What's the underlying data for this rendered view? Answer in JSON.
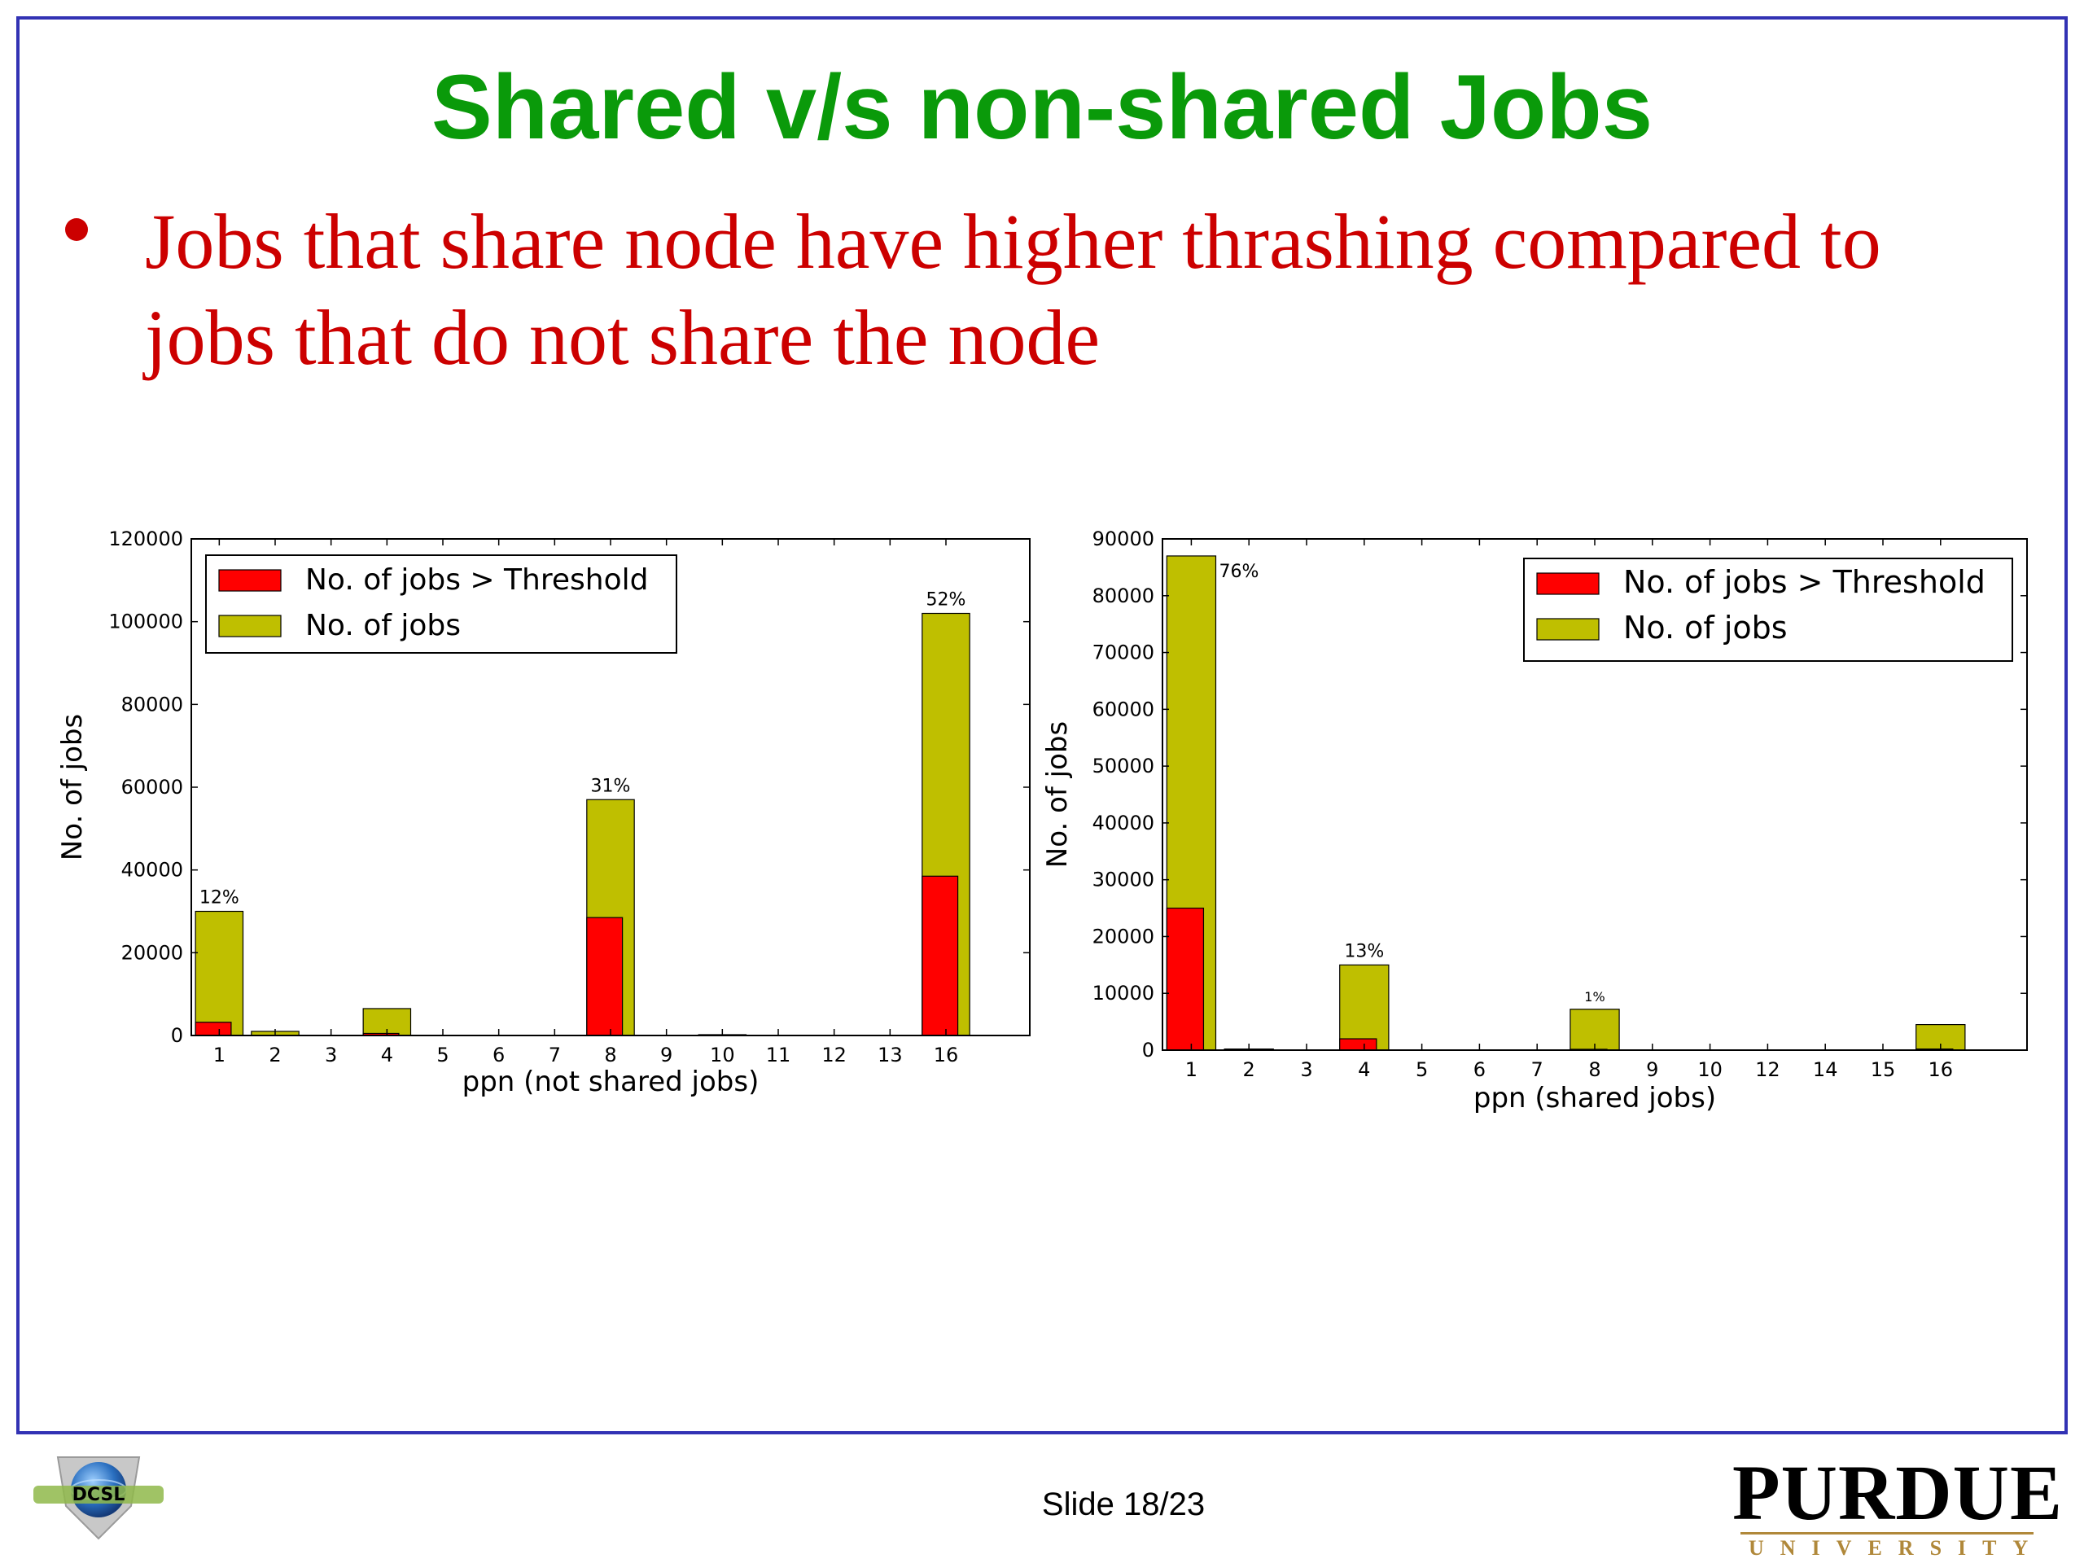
{
  "slide": {
    "title": "Shared v/s non-shared Jobs",
    "bullet": "Jobs that share node have higher thrashing compared to jobs that do not share the node",
    "footer": "Slide 18/23",
    "logos": {
      "left": "dcsl-logo",
      "right": {
        "word": "PURDUE",
        "sub": "UNIVERSITY"
      }
    },
    "colors": {
      "title": "#0a9a0a",
      "bullet": "#cc0000",
      "frame": "#3232b4"
    }
  },
  "chart_data": [
    {
      "type": "bar",
      "categories": [
        "1",
        "2",
        "3",
        "4",
        "5",
        "6",
        "7",
        "8",
        "9",
        "10",
        "11",
        "12",
        "13",
        "16"
      ],
      "series": [
        {
          "name": "No. of jobs",
          "color": "#bfbf00",
          "values": [
            30000,
            1000,
            0,
            6500,
            0,
            0,
            0,
            57000,
            0,
            200,
            0,
            0,
            0,
            102000
          ]
        },
        {
          "name": "No. of jobs > Threshold",
          "color": "#ff0000",
          "values": [
            3200,
            0,
            0,
            500,
            0,
            0,
            0,
            28500,
            0,
            0,
            0,
            0,
            0,
            38500
          ]
        }
      ],
      "annotations": [
        {
          "category": "1",
          "text": "12%"
        },
        {
          "category": "8",
          "text": "31%"
        },
        {
          "category": "16",
          "text": "52%"
        }
      ],
      "yticks": [
        "0",
        "20000",
        "40000",
        "60000",
        "80000",
        "100000",
        "120000"
      ],
      "ylim": [
        0,
        120000
      ],
      "xlabel": "ppn (not shared jobs)",
      "ylabel": "No. of jobs",
      "legend": "top-left",
      "grid": false
    },
    {
      "type": "bar",
      "categories": [
        "1",
        "2",
        "3",
        "4",
        "5",
        "6",
        "7",
        "8",
        "9",
        "10",
        "12",
        "14",
        "15",
        "16"
      ],
      "series": [
        {
          "name": "No. of jobs",
          "color": "#bfbf00",
          "values": [
            87000,
            200,
            0,
            15000,
            0,
            0,
            0,
            7200,
            0,
            0,
            0,
            0,
            0,
            4500
          ]
        },
        {
          "name": "No. of jobs > Threshold",
          "color": "#ff0000",
          "values": [
            25000,
            0,
            0,
            2000,
            0,
            0,
            0,
            150,
            0,
            0,
            0,
            0,
            0,
            200
          ]
        }
      ],
      "annotations": [
        {
          "category": "1",
          "text": "76%"
        },
        {
          "category": "4",
          "text": "13%"
        },
        {
          "category": "8",
          "text": "1%"
        }
      ],
      "yticks": [
        "0",
        "10000",
        "20000",
        "30000",
        "40000",
        "50000",
        "60000",
        "70000",
        "80000",
        "90000"
      ],
      "ylim": [
        0,
        90000
      ],
      "xlabel": "ppn (shared jobs)",
      "ylabel": "No. of jobs",
      "legend": "top-right",
      "grid": false
    }
  ]
}
